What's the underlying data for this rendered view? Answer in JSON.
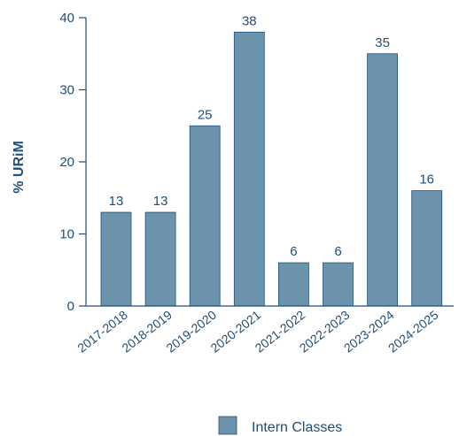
{
  "chart_data": {
    "type": "bar",
    "ylabel": "% URiM",
    "xlabel": "",
    "ylim": [
      0,
      40
    ],
    "yticks": [
      0,
      10,
      20,
      30,
      40
    ],
    "categories": [
      "2017-2018",
      "2018-2019",
      "2019-2020",
      "2020-2021",
      "2021-2022",
      "2022-2023",
      "2023-2024",
      "2024-2025"
    ],
    "series": [
      {
        "name": "Intern Classes",
        "values": [
          13,
          13,
          25,
          38,
          6,
          6,
          35,
          16
        ],
        "labels": [
          "13",
          "13",
          "25",
          "38",
          "6",
          "6",
          "35",
          "16"
        ],
        "color": "#6b93ab"
      }
    ],
    "legend_position": "bottom-center",
    "grid": false
  },
  "colors": {
    "axis": "#1f4e79",
    "text": "#1f4e79",
    "bar_stroke": "#1f4e79"
  }
}
